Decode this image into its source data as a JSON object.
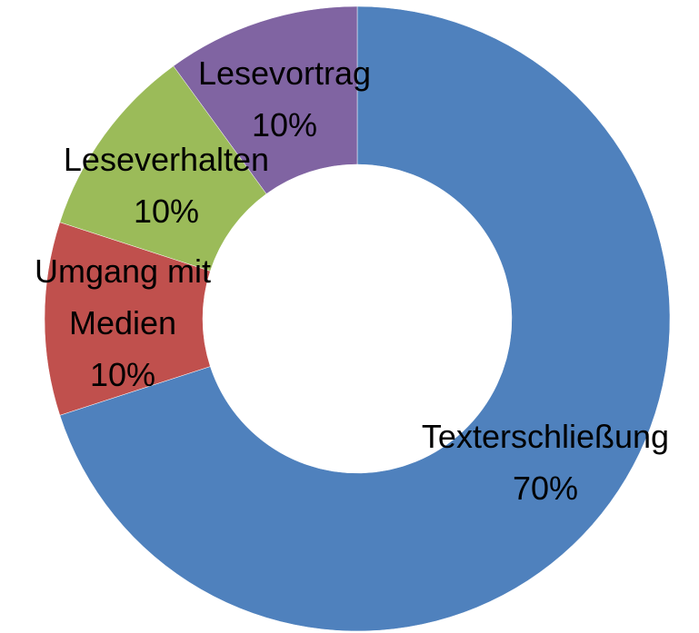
{
  "chart_data": {
    "type": "donut",
    "categories": [
      "Texterschließung",
      "Umgang mit Medien",
      "Leseverhalten",
      "Lesevortrag"
    ],
    "values": [
      70,
      10,
      10,
      10
    ],
    "value_labels": [
      "70%",
      "10%",
      "10%",
      "10%"
    ],
    "colors": [
      "#4f81bd",
      "#c0504d",
      "#9bbb59",
      "#8064a2"
    ]
  }
}
